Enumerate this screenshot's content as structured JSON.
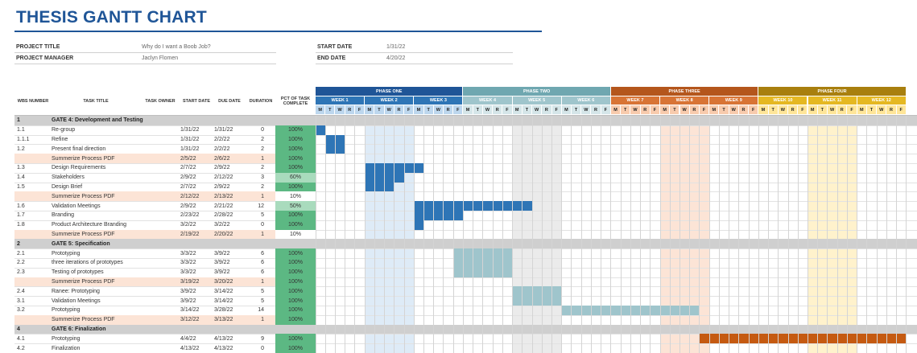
{
  "title": "THESIS GANTT CHART",
  "project": {
    "title_label": "PROJECT TITLE",
    "title_value": "Why do I want a Boob Job?",
    "manager_label": "PROJECT MANAGER",
    "manager_value": "Jaclyn Flomen",
    "start_label": "START DATE",
    "start_value": "1/31/22",
    "end_label": "END DATE",
    "end_value": "4/20/22"
  },
  "columns": {
    "wbs": "WBS NUMBER",
    "task": "TASK TITLE",
    "owner": "TASK OWNER",
    "start": "START DATE",
    "due": "DUE DATE",
    "duration": "DURATION",
    "pct": "PCT OF TASK COMPLETE"
  },
  "day_letters": [
    "M",
    "T",
    "W",
    "R",
    "F"
  ],
  "phases": [
    {
      "name": "PHASE ONE",
      "color": "#1f5597",
      "week_color": "#2e75b6",
      "week_text": "#ffffff",
      "day_color": "#bdd7ee",
      "stripe": "#deebf7",
      "weeks": [
        "WEEK 1",
        "WEEK 2",
        "WEEK 3"
      ]
    },
    {
      "name": "PHASE TWO",
      "color": "#6fa7b0",
      "week_color": "#9fc5cc",
      "week_text": "#ffffff",
      "day_color": "#d5e6e9",
      "stripe": "#ebebeb",
      "weeks": [
        "WEEK 4",
        "WEEK 5",
        "WEEK 6"
      ]
    },
    {
      "name": "PHASE THREE",
      "color": "#b4561c",
      "week_color": "#d87435",
      "week_text": "#ffffff",
      "day_color": "#f8cbad",
      "stripe": "#fce4d6",
      "weeks": [
        "WEEK 7",
        "WEEK 8",
        "WEEK 9"
      ]
    },
    {
      "name": "PHASE FOUR",
      "color": "#a87f0e",
      "week_color": "#e5b822",
      "week_text": "#ffffff",
      "day_color": "#ffe699",
      "stripe": "#fff2cc",
      "weeks": [
        "WEEK 10",
        "WEEK 11",
        "WEEK 12"
      ]
    }
  ],
  "rows": [
    {
      "type": "section",
      "wbs": "1",
      "task": "GATE 4: Development and Testing"
    },
    {
      "type": "task",
      "wbs": "1.1",
      "task": "Re-group",
      "owner": "",
      "start": "1/31/22",
      "due": "1/31/22",
      "duration": "0",
      "pct": "100%",
      "pct_value": 100,
      "bar_start": 0,
      "bar_len": 1,
      "bar_color": "#2e75b6"
    },
    {
      "type": "task",
      "wbs": "1.1.1",
      "task": "Refine",
      "owner": "",
      "start": "1/31/22",
      "due": "2/2/22",
      "duration": "2",
      "pct": "100%",
      "pct_value": 100,
      "bar_start": 1,
      "bar_len": 2,
      "bar_color": "#2e75b6"
    },
    {
      "type": "task",
      "wbs": "1.2",
      "task": "Present final direction",
      "owner": "",
      "start": "1/31/22",
      "due": "2/2/22",
      "duration": "2",
      "pct": "100%",
      "pct_value": 100,
      "bar_start": 1,
      "bar_len": 2,
      "bar_color": "#2e75b6"
    },
    {
      "type": "summary",
      "wbs": "",
      "task": "Summerize Process PDF",
      "owner": "",
      "start": "2/5/22",
      "due": "2/6/22",
      "duration": "1",
      "pct": "100%",
      "pct_value": 100
    },
    {
      "type": "task",
      "wbs": "1.3",
      "task": "Design Requirements",
      "owner": "",
      "start": "2/7/22",
      "due": "2/9/22",
      "duration": "2",
      "pct": "100%",
      "pct_value": 100,
      "bar_start": 5,
      "bar_len": 6,
      "bar_color": "#2e75b6"
    },
    {
      "type": "task",
      "wbs": "1.4",
      "task": "Stakeholders",
      "owner": "",
      "start": "2/9/22",
      "due": "2/12/22",
      "duration": "3",
      "pct": "60%",
      "pct_value": 60,
      "bar_start": 5,
      "bar_len": 4,
      "bar_color": "#2e75b6"
    },
    {
      "type": "task",
      "wbs": "1.5",
      "task": "Design Brief",
      "owner": "",
      "start": "2/7/22",
      "due": "2/9/22",
      "duration": "2",
      "pct": "100%",
      "pct_value": 100,
      "bar_start": 5,
      "bar_len": 3,
      "bar_color": "#2e75b6"
    },
    {
      "type": "summary",
      "wbs": "",
      "task": "Summerize Process PDF",
      "owner": "",
      "start": "2/12/22",
      "due": "2/13/22",
      "duration": "1",
      "pct": "10%",
      "pct_value": 10
    },
    {
      "type": "task",
      "wbs": "1.6",
      "task": "Validation Meetings",
      "owner": "",
      "start": "2/9/22",
      "due": "2/21/22",
      "duration": "12",
      "pct": "50%",
      "pct_value": 50,
      "bar_start": 10,
      "bar_len": 12,
      "bar_color": "#2e75b6"
    },
    {
      "type": "task",
      "wbs": "1.7",
      "task": "Branding",
      "owner": "",
      "start": "2/23/22",
      "due": "2/28/22",
      "duration": "5",
      "pct": "100%",
      "pct_value": 100,
      "bar_start": 10,
      "bar_len": 5,
      "bar_color": "#2e75b6"
    },
    {
      "type": "task",
      "wbs": "1.8",
      "task": "Product Architecture Branding",
      "owner": "",
      "start": "3/2/22",
      "due": "3/2/22",
      "duration": "0",
      "pct": "100%",
      "pct_value": 100,
      "bar_start": 10,
      "bar_len": 1,
      "bar_color": "#2e75b6"
    },
    {
      "type": "summary",
      "wbs": "",
      "task": "Summerize Process PDF",
      "owner": "",
      "start": "2/19/22",
      "due": "2/20/22",
      "duration": "1",
      "pct": "10%",
      "pct_value": 10
    },
    {
      "type": "section",
      "wbs": "2",
      "task": "GATE 5: Specification"
    },
    {
      "type": "task",
      "wbs": "2.1",
      "task": "Prototyping",
      "owner": "",
      "start": "3/3/22",
      "due": "3/9/22",
      "duration": "6",
      "pct": "100%",
      "pct_value": 100,
      "bar_start": 14,
      "bar_len": 6,
      "bar_color": "#9fc5cc"
    },
    {
      "type": "task",
      "wbs": "2.2",
      "task": "three iterations of prototypes",
      "owner": "",
      "start": "3/3/22",
      "due": "3/9/22",
      "duration": "6",
      "pct": "100%",
      "pct_value": 100,
      "bar_start": 14,
      "bar_len": 6,
      "bar_color": "#9fc5cc"
    },
    {
      "type": "task",
      "wbs": "2.3",
      "task": "Testing of prototypes",
      "owner": "",
      "start": "3/3/22",
      "due": "3/9/22",
      "duration": "6",
      "pct": "100%",
      "pct_value": 100,
      "bar_start": 14,
      "bar_len": 6,
      "bar_color": "#9fc5cc"
    },
    {
      "type": "summary",
      "wbs": "",
      "task": "Summerize Process PDF",
      "owner": "",
      "start": "3/19/22",
      "due": "3/20/22",
      "duration": "1",
      "pct": "100%",
      "pct_value": 100
    },
    {
      "type": "task",
      "wbs": "2.4",
      "task": "Ranee: Prototyping",
      "owner": "",
      "start": "3/9/22",
      "due": "3/14/22",
      "duration": "5",
      "pct": "100%",
      "pct_value": 100,
      "bar_start": 20,
      "bar_len": 5,
      "bar_color": "#9fc5cc"
    },
    {
      "type": "task",
      "wbs": "3.1",
      "task": "Validation Meetings",
      "owner": "",
      "start": "3/9/22",
      "due": "3/14/22",
      "duration": "5",
      "pct": "100%",
      "pct_value": 100,
      "bar_start": 20,
      "bar_len": 5,
      "bar_color": "#9fc5cc"
    },
    {
      "type": "task",
      "wbs": "3.2",
      "task": "Prototyping",
      "owner": "",
      "start": "3/14/22",
      "due": "3/28/22",
      "duration": "14",
      "pct": "100%",
      "pct_value": 100,
      "bar_start": 25,
      "bar_len": 14,
      "bar_color": "#9fc5cc"
    },
    {
      "type": "summary",
      "wbs": "",
      "task": "Summerize Process PDF",
      "owner": "",
      "start": "3/12/22",
      "due": "3/13/22",
      "duration": "1",
      "pct": "100%",
      "pct_value": 100
    },
    {
      "type": "section",
      "wbs": "4",
      "task": "GATE 6: Finalization"
    },
    {
      "type": "task",
      "wbs": "4.1",
      "task": "Prototyping",
      "owner": "",
      "start": "4/4/22",
      "due": "4/13/22",
      "duration": "9",
      "pct": "100%",
      "pct_value": 100,
      "bar_start": 39,
      "bar_len": 21,
      "bar_color": "#c55a11"
    },
    {
      "type": "task",
      "wbs": "4.2",
      "task": "Finalization",
      "owner": "",
      "start": "4/13/22",
      "due": "4/13/22",
      "duration": "0",
      "pct": "100%",
      "pct_value": 100
    }
  ],
  "colors": {
    "section_bg": "#cfcfcf",
    "summary_bg": "#fce4d6",
    "pct_full": "#5cb883",
    "pct_mid": "#a9dbbd",
    "pct_low": "#ffffff",
    "day_stripe_grey": "#ebebeb"
  }
}
